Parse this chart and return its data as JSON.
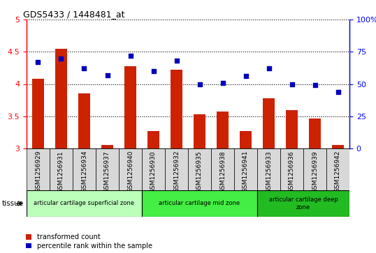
{
  "title": "GDS5433 / 1448481_at",
  "samples": [
    "GSM1256929",
    "GSM1256931",
    "GSM1256934",
    "GSM1256937",
    "GSM1256940",
    "GSM1256930",
    "GSM1256932",
    "GSM1256935",
    "GSM1256938",
    "GSM1256941",
    "GSM1256933",
    "GSM1256936",
    "GSM1256939",
    "GSM1256942"
  ],
  "transformed_count": [
    4.08,
    4.55,
    3.85,
    3.05,
    4.28,
    3.27,
    4.22,
    3.53,
    3.57,
    3.27,
    3.78,
    3.6,
    3.47,
    3.05
  ],
  "percentile_rank": [
    67,
    70,
    62,
    57,
    72,
    60,
    68,
    50,
    51,
    56,
    62,
    50,
    49,
    44
  ],
  "ylim_left": [
    3.0,
    5.0
  ],
  "ylim_right": [
    0,
    100
  ],
  "yticks_left": [
    3.0,
    3.5,
    4.0,
    4.5,
    5.0
  ],
  "yticks_right": [
    0,
    25,
    50,
    75,
    100
  ],
  "groups": [
    {
      "label": "articular cartilage superficial zone",
      "start": 0,
      "end": 4,
      "color": "#bbffbb"
    },
    {
      "label": "articular cartilage mid zone",
      "start": 5,
      "end": 9,
      "color": "#44ee44"
    },
    {
      "label": "articular cartilage deep\nzone",
      "start": 10,
      "end": 13,
      "color": "#22bb22"
    }
  ],
  "bar_color": "#cc2200",
  "dot_color": "#0000bb",
  "bar_width": 0.5,
  "tick_bg_color": "#d8d8d8",
  "tissue_label": "tissue",
  "legend_items": [
    {
      "label": "transformed count",
      "color": "#cc2200"
    },
    {
      "label": "percentile rank within the sample",
      "color": "#0000bb"
    }
  ]
}
